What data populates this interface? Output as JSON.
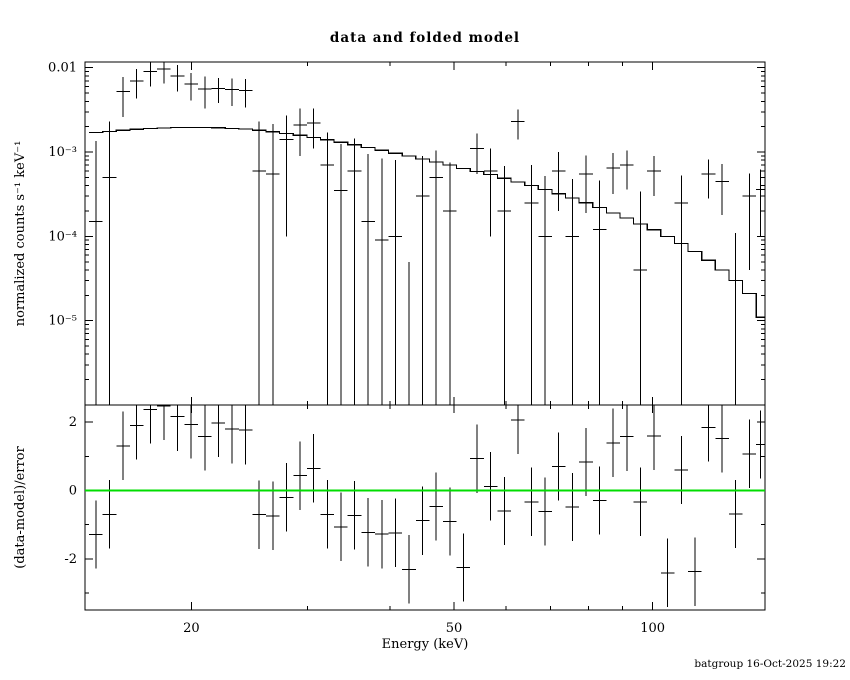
{
  "title": "data and folded model",
  "footer": {
    "text": "batgroup 16-Oct-2025 19:22"
  },
  "chart_data": {
    "type": "line",
    "title": "data and folded model",
    "xlabel": "Energy (keV)",
    "x_scale": "log",
    "x_range": [
      13.8,
      148
    ],
    "x_ticks_major": {
      "values": [
        20,
        50,
        100
      ],
      "labels": [
        "20",
        "50",
        "100"
      ]
    },
    "x_ticks_minor": [
      30,
      40,
      60,
      70,
      80,
      90
    ],
    "grid": false,
    "legend": false,
    "panels": {
      "top": {
        "ylabel": "normalized counts s⁻¹ keV⁻¹",
        "y_scale": "log",
        "y_range": [
          1e-06,
          0.0117
        ],
        "y_ticks_major": {
          "values": [
            0.01,
            0.001,
            0.0001,
            1e-05,
            1e-06
          ],
          "labels": [
            "0.01",
            "10⁻³",
            "10⁻⁴",
            "10⁻⁵",
            ""
          ]
        }
      },
      "bottom": {
        "ylabel": "(data-model)/error",
        "y_scale": "linear",
        "y_range": [
          -3.5,
          2.5
        ],
        "y_ticks_major": {
          "values": [
            -2,
            0,
            2
          ],
          "labels": [
            "-2",
            "0",
            "2"
          ]
        },
        "y_ticks_minor": [
          -3,
          -1,
          1
        ],
        "zero_line_color": "#00dd00",
        "resid_err": 1
      }
    },
    "series_colors": {
      "data": "#000000",
      "model": "#000000"
    },
    "bin_edges": [
      14.0,
      14.68,
      15.39,
      16.14,
      16.93,
      17.75,
      18.61,
      19.52,
      20.47,
      21.46,
      22.51,
      23.6,
      24.75,
      25.95,
      27.21,
      28.54,
      29.93,
      31.38,
      32.91,
      34.51,
      36.19,
      37.95,
      39.8,
      41.73,
      43.76,
      45.89,
      48.12,
      50.46,
      52.92,
      55.49,
      58.19,
      61.02,
      63.99,
      67.1,
      70.37,
      73.79,
      77.38,
      81.15,
      85.09,
      89.23,
      93.57,
      98.13,
      102.9,
      107.91,
      113.16,
      118.66,
      124.44,
      130.49,
      136.84,
      143.5,
      148.0
    ],
    "bin_centers": [
      14.34,
      15.03,
      15.76,
      16.53,
      17.34,
      18.18,
      19.06,
      19.99,
      20.96,
      21.98,
      23.05,
      24.17,
      25.35,
      26.58,
      27.87,
      29.23,
      30.65,
      32.14,
      33.7,
      35.34,
      37.06,
      38.87,
      40.76,
      42.74,
      44.82,
      47.0,
      49.28,
      51.68,
      54.19,
      56.83,
      59.59,
      62.49,
      65.53,
      68.72,
      72.06,
      75.57,
      79.24,
      83.1,
      87.14,
      91.38,
      95.83,
      100.49,
      105.38,
      110.51,
      115.88,
      121.52,
      127.43,
      133.63,
      140.13,
      145.73
    ],
    "model": [
      0.0017,
      0.00176,
      0.00181,
      0.00186,
      0.0019,
      0.00193,
      0.00195,
      0.00196,
      0.00196,
      0.00194,
      0.00191,
      0.00187,
      0.00181,
      0.00174,
      0.00166,
      0.00158,
      0.00149,
      0.0014,
      0.00131,
      0.00122,
      0.00113,
      0.00105,
      0.00097,
      0.0009,
      0.00083,
      0.00076,
      0.0007,
      0.00064,
      0.00059,
      0.00054,
      0.00049,
      0.00044,
      0.0004,
      0.00036,
      0.00032,
      0.000285,
      0.00025,
      0.00022,
      0.00019,
      0.000165,
      0.00014,
      0.00012,
      0.0001,
      8.2e-05,
      6.6e-05,
      5.2e-05,
      4e-05,
      3e-05,
      2.1e-05,
      1.1e-05
    ],
    "data": [
      0.00015,
      0.0005,
      0.0052,
      0.007,
      0.009,
      0.0096,
      0.008,
      0.0064,
      0.0056,
      0.0057,
      0.0055,
      0.0054,
      0.0006,
      0.00055,
      0.0014,
      0.0021,
      0.0022,
      0.0007,
      0.00035,
      0.0006,
      0.00015,
      9e-05,
      0.0001,
      -0.0006,
      0.0003,
      0.0005,
      0.0002,
      -0.0006,
      0.0011,
      0.0006,
      0.0002,
      0.0023,
      0.00025,
      0.0001,
      0.0006,
      0.0001,
      0.00055,
      0.00012,
      0.00065,
      0.0007,
      4e-05,
      0.0006,
      -0.0006,
      0.00025,
      -0.0006,
      0.00055,
      0.00045,
      -0.00015,
      0.0003,
      0.00036
    ],
    "data_err": [
      0.0012,
      0.0018,
      0.0026,
      0.0027,
      0.003,
      0.0031,
      0.0028,
      0.0023,
      0.0023,
      0.0019,
      0.002,
      0.002,
      0.0017,
      0.0016,
      0.0013,
      0.0012,
      0.0011,
      0.001,
      0.0009,
      0.00085,
      0.0008,
      0.00075,
      0.0007,
      0.00065,
      0.0006,
      0.00055,
      0.00055,
      0.00055,
      0.00055,
      0.0005,
      0.00048,
      0.0009,
      0.00045,
      0.00042,
      0.0004,
      0.00038,
      0.00036,
      0.00034,
      0.00033,
      0.00034,
      0.0003,
      0.0003,
      0.00029,
      0.00028,
      0.00028,
      0.00027,
      0.00027,
      0.00026,
      0.00026,
      0.00026
    ]
  }
}
